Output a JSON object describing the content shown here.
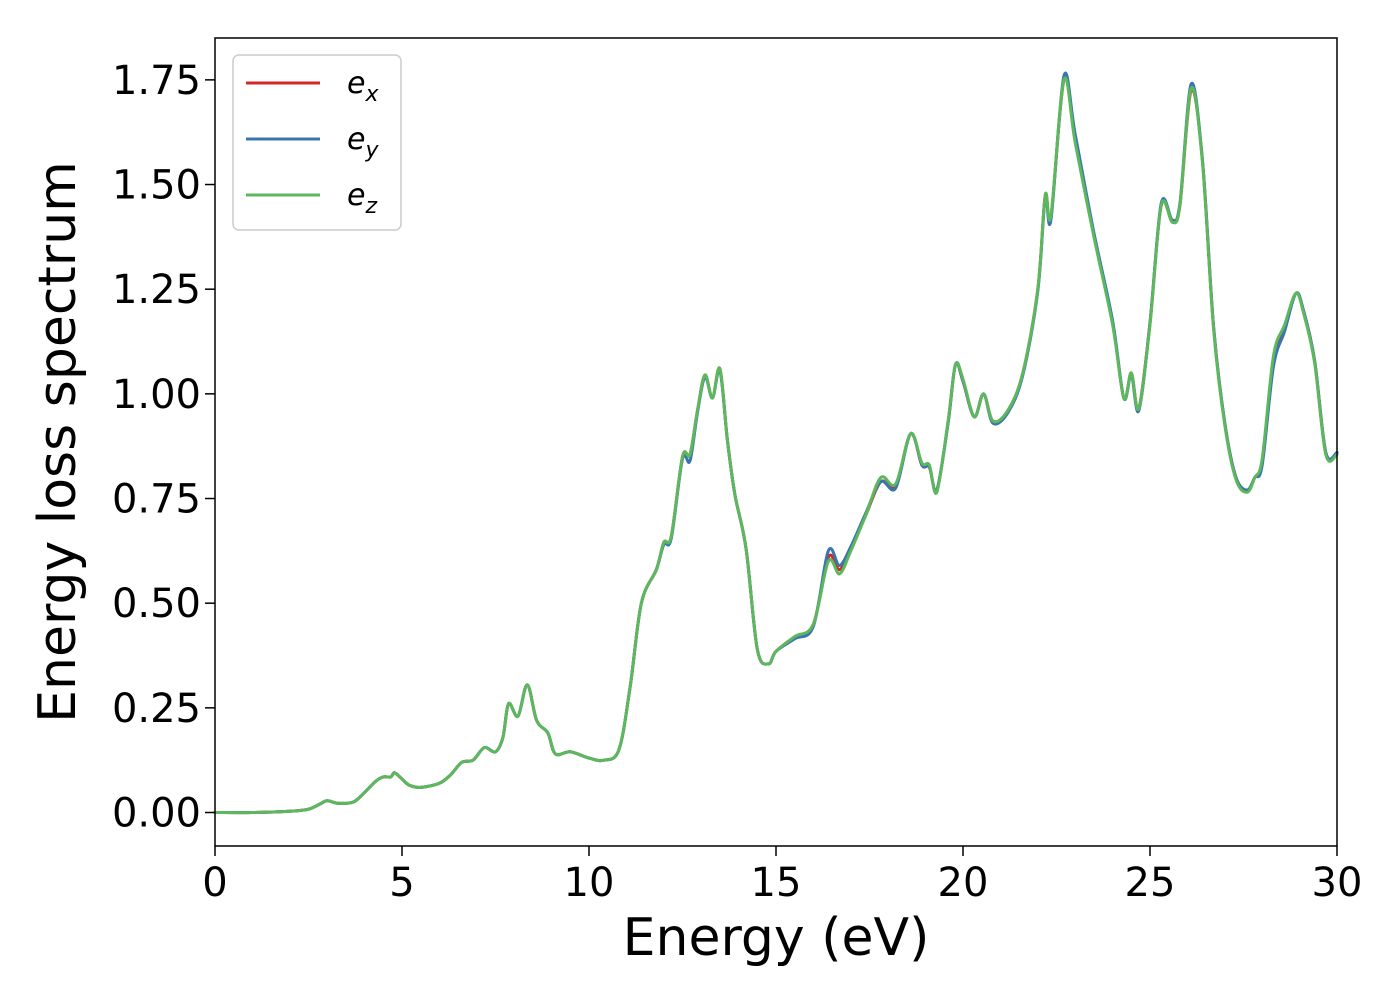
{
  "chart_data": {
    "type": "line",
    "xlabel": "Energy (eV)",
    "ylabel": "Energy loss spectrum",
    "xlim": [
      0,
      30
    ],
    "ylim": [
      -0.08,
      1.85
    ],
    "grid": false,
    "legend_position": "top-left",
    "x_ticks": [
      "0",
      "5",
      "10",
      "15",
      "20",
      "25",
      "30"
    ],
    "y_ticks": [
      "0.00",
      "0.25",
      "0.50",
      "0.75",
      "1.00",
      "1.25",
      "1.50",
      "1.75"
    ],
    "x": [
      0,
      1,
      2,
      2.5,
      2.8,
      3.0,
      3.3,
      3.7,
      4.0,
      4.3,
      4.5,
      4.7,
      4.8,
      5.0,
      5.2,
      5.5,
      6.0,
      6.3,
      6.6,
      6.9,
      7.2,
      7.5,
      7.7,
      7.85,
      8.1,
      8.35,
      8.6,
      8.9,
      9.1,
      9.5,
      10.0,
      10.4,
      10.8,
      11.1,
      11.4,
      11.8,
      12.0,
      12.2,
      12.5,
      12.7,
      12.9,
      13.1,
      13.3,
      13.5,
      13.7,
      13.9,
      14.2,
      14.5,
      14.8,
      15.0,
      15.5,
      16.0,
      16.4,
      16.7,
      17.0,
      17.4,
      17.8,
      18.2,
      18.6,
      18.9,
      19.1,
      19.3,
      19.6,
      19.8,
      20.0,
      20.3,
      20.55,
      20.8,
      21.2,
      21.6,
      22.0,
      22.2,
      22.35,
      22.7,
      23.0,
      23.5,
      24.0,
      24.3,
      24.5,
      24.7,
      25.0,
      25.3,
      25.6,
      25.8,
      26.1,
      26.4,
      26.7,
      27.0,
      27.3,
      27.6,
      27.8,
      28.0,
      28.3,
      28.6,
      28.9,
      29.1,
      29.4,
      29.7,
      30.0
    ],
    "series": [
      {
        "name": "e_x",
        "color": "#d62728",
        "values": [
          0.0,
          0.0,
          0.003,
          0.008,
          0.02,
          0.028,
          0.022,
          0.025,
          0.048,
          0.075,
          0.085,
          0.085,
          0.095,
          0.08,
          0.065,
          0.06,
          0.07,
          0.09,
          0.12,
          0.125,
          0.155,
          0.145,
          0.18,
          0.26,
          0.23,
          0.305,
          0.22,
          0.19,
          0.14,
          0.145,
          0.13,
          0.125,
          0.15,
          0.3,
          0.5,
          0.58,
          0.645,
          0.66,
          0.85,
          0.855,
          0.96,
          1.045,
          0.99,
          1.06,
          0.89,
          0.76,
          0.63,
          0.39,
          0.355,
          0.385,
          0.42,
          0.45,
          0.61,
          0.58,
          0.63,
          0.71,
          0.79,
          0.78,
          0.905,
          0.83,
          0.825,
          0.77,
          0.93,
          1.07,
          1.03,
          0.945,
          1.0,
          0.935,
          0.96,
          1.05,
          1.25,
          1.475,
          1.42,
          1.75,
          1.61,
          1.38,
          1.17,
          0.99,
          1.05,
          0.965,
          1.17,
          1.45,
          1.41,
          1.45,
          1.725,
          1.56,
          1.16,
          0.93,
          0.8,
          0.77,
          0.8,
          0.84,
          1.08,
          1.16,
          1.24,
          1.2,
          1.08,
          0.86,
          0.86
        ]
      },
      {
        "name": "e_y",
        "color": "#3b75af",
        "values": [
          0.0,
          0.0,
          0.003,
          0.008,
          0.02,
          0.028,
          0.022,
          0.025,
          0.048,
          0.075,
          0.085,
          0.085,
          0.095,
          0.08,
          0.065,
          0.06,
          0.07,
          0.09,
          0.12,
          0.125,
          0.155,
          0.145,
          0.18,
          0.26,
          0.23,
          0.305,
          0.22,
          0.19,
          0.14,
          0.145,
          0.13,
          0.125,
          0.15,
          0.3,
          0.5,
          0.58,
          0.64,
          0.655,
          0.845,
          0.84,
          0.955,
          1.04,
          0.99,
          1.055,
          0.89,
          0.76,
          0.63,
          0.39,
          0.355,
          0.385,
          0.415,
          0.445,
          0.625,
          0.59,
          0.635,
          0.715,
          0.79,
          0.775,
          0.905,
          0.83,
          0.825,
          0.77,
          0.93,
          1.07,
          1.03,
          0.945,
          1.0,
          0.93,
          0.955,
          1.045,
          1.245,
          1.47,
          1.415,
          1.76,
          1.62,
          1.385,
          1.175,
          0.99,
          1.045,
          0.96,
          1.17,
          1.455,
          1.415,
          1.455,
          1.74,
          1.56,
          1.16,
          0.93,
          0.8,
          0.77,
          0.8,
          0.83,
          1.065,
          1.15,
          1.24,
          1.2,
          1.08,
          0.86,
          0.86
        ]
      },
      {
        "name": "e_z",
        "color": "#5cb85c",
        "values": [
          0.0,
          0.0,
          0.003,
          0.008,
          0.02,
          0.028,
          0.022,
          0.025,
          0.048,
          0.075,
          0.085,
          0.085,
          0.095,
          0.08,
          0.065,
          0.06,
          0.07,
          0.09,
          0.12,
          0.125,
          0.155,
          0.145,
          0.18,
          0.26,
          0.23,
          0.305,
          0.22,
          0.19,
          0.14,
          0.145,
          0.13,
          0.125,
          0.15,
          0.3,
          0.5,
          0.58,
          0.645,
          0.66,
          0.85,
          0.855,
          0.96,
          1.045,
          0.99,
          1.06,
          0.89,
          0.76,
          0.63,
          0.39,
          0.355,
          0.385,
          0.42,
          0.45,
          0.6,
          0.57,
          0.625,
          0.71,
          0.8,
          0.785,
          0.905,
          0.835,
          0.83,
          0.765,
          0.935,
          1.07,
          1.035,
          0.945,
          1.0,
          0.935,
          0.96,
          1.05,
          1.25,
          1.475,
          1.425,
          1.75,
          1.6,
          1.375,
          1.165,
          0.99,
          1.05,
          0.965,
          1.165,
          1.45,
          1.41,
          1.45,
          1.73,
          1.555,
          1.155,
          0.925,
          0.795,
          0.765,
          0.8,
          0.845,
          1.09,
          1.165,
          1.24,
          1.195,
          1.075,
          0.855,
          0.855
        ]
      }
    ],
    "legend": [
      {
        "base": "e",
        "sub": "x",
        "color": "#d62728"
      },
      {
        "base": "e",
        "sub": "y",
        "color": "#3b75af"
      },
      {
        "base": "e",
        "sub": "z",
        "color": "#5cb85c"
      }
    ]
  }
}
